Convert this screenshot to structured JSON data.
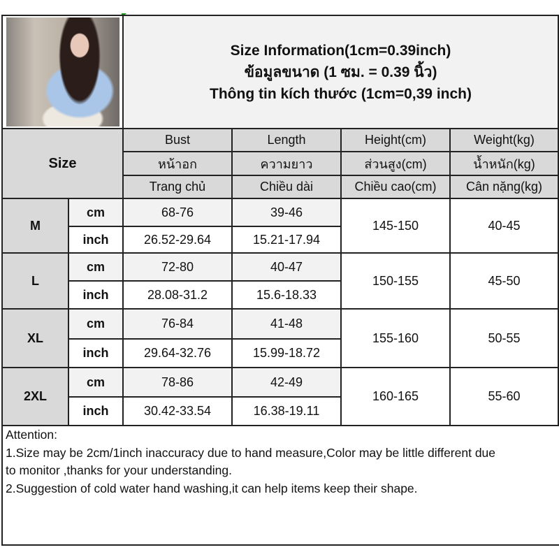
{
  "title_lines": [
    "Size Information(1cm=0.39inch)",
    "ข้อมูลขนาด (1 ซม. = 0.39 นิ้ว)",
    "Thông tin kích thước (1cm=0,39 inch)"
  ],
  "size_header": "Size",
  "columns": [
    {
      "en": "Bust",
      "th": "หน้าอก",
      "vi": "Trang chủ"
    },
    {
      "en": "Length",
      "th": "ความยาว",
      "vi": "Chiều dài"
    },
    {
      "en": "Height(cm)",
      "th": "ส่วนสูง(cm)",
      "vi": "Chiều cao(cm)"
    },
    {
      "en": "Weight(kg)",
      "th": "น้ำหนัก(kg)",
      "vi": "Cân nặng(kg)"
    }
  ],
  "units": {
    "cm": "cm",
    "inch": "inch"
  },
  "rows": [
    {
      "size": "M",
      "bust_cm": "68-76",
      "length_cm": "39-46",
      "bust_inch": "26.52-29.64",
      "length_inch": "15.21-17.94",
      "height": "145-150",
      "weight": "40-45"
    },
    {
      "size": "L",
      "bust_cm": "72-80",
      "length_cm": "40-47",
      "bust_inch": "28.08-31.2",
      "length_inch": "15.6-18.33",
      "height": "150-155",
      "weight": "45-50"
    },
    {
      "size": "XL",
      "bust_cm": "76-84",
      "length_cm": "41-48",
      "bust_inch": "29.64-32.76",
      "length_inch": "15.99-18.72",
      "height": "155-160",
      "weight": "50-55"
    },
    {
      "size": "2XL",
      "bust_cm": "78-86",
      "length_cm": "42-49",
      "bust_inch": "30.42-33.54",
      "length_inch": "16.38-19.11",
      "height": "160-165",
      "weight": "55-60"
    }
  ],
  "attention": {
    "heading": "Attention:",
    "lines": [
      "1.Size may be 2cm/1inch inaccuracy due to hand measure,Color may be little different due",
      "to monitor ,thanks for your understanding.",
      "2.Suggestion of cold water hand washing,it can help items keep their shape."
    ]
  }
}
